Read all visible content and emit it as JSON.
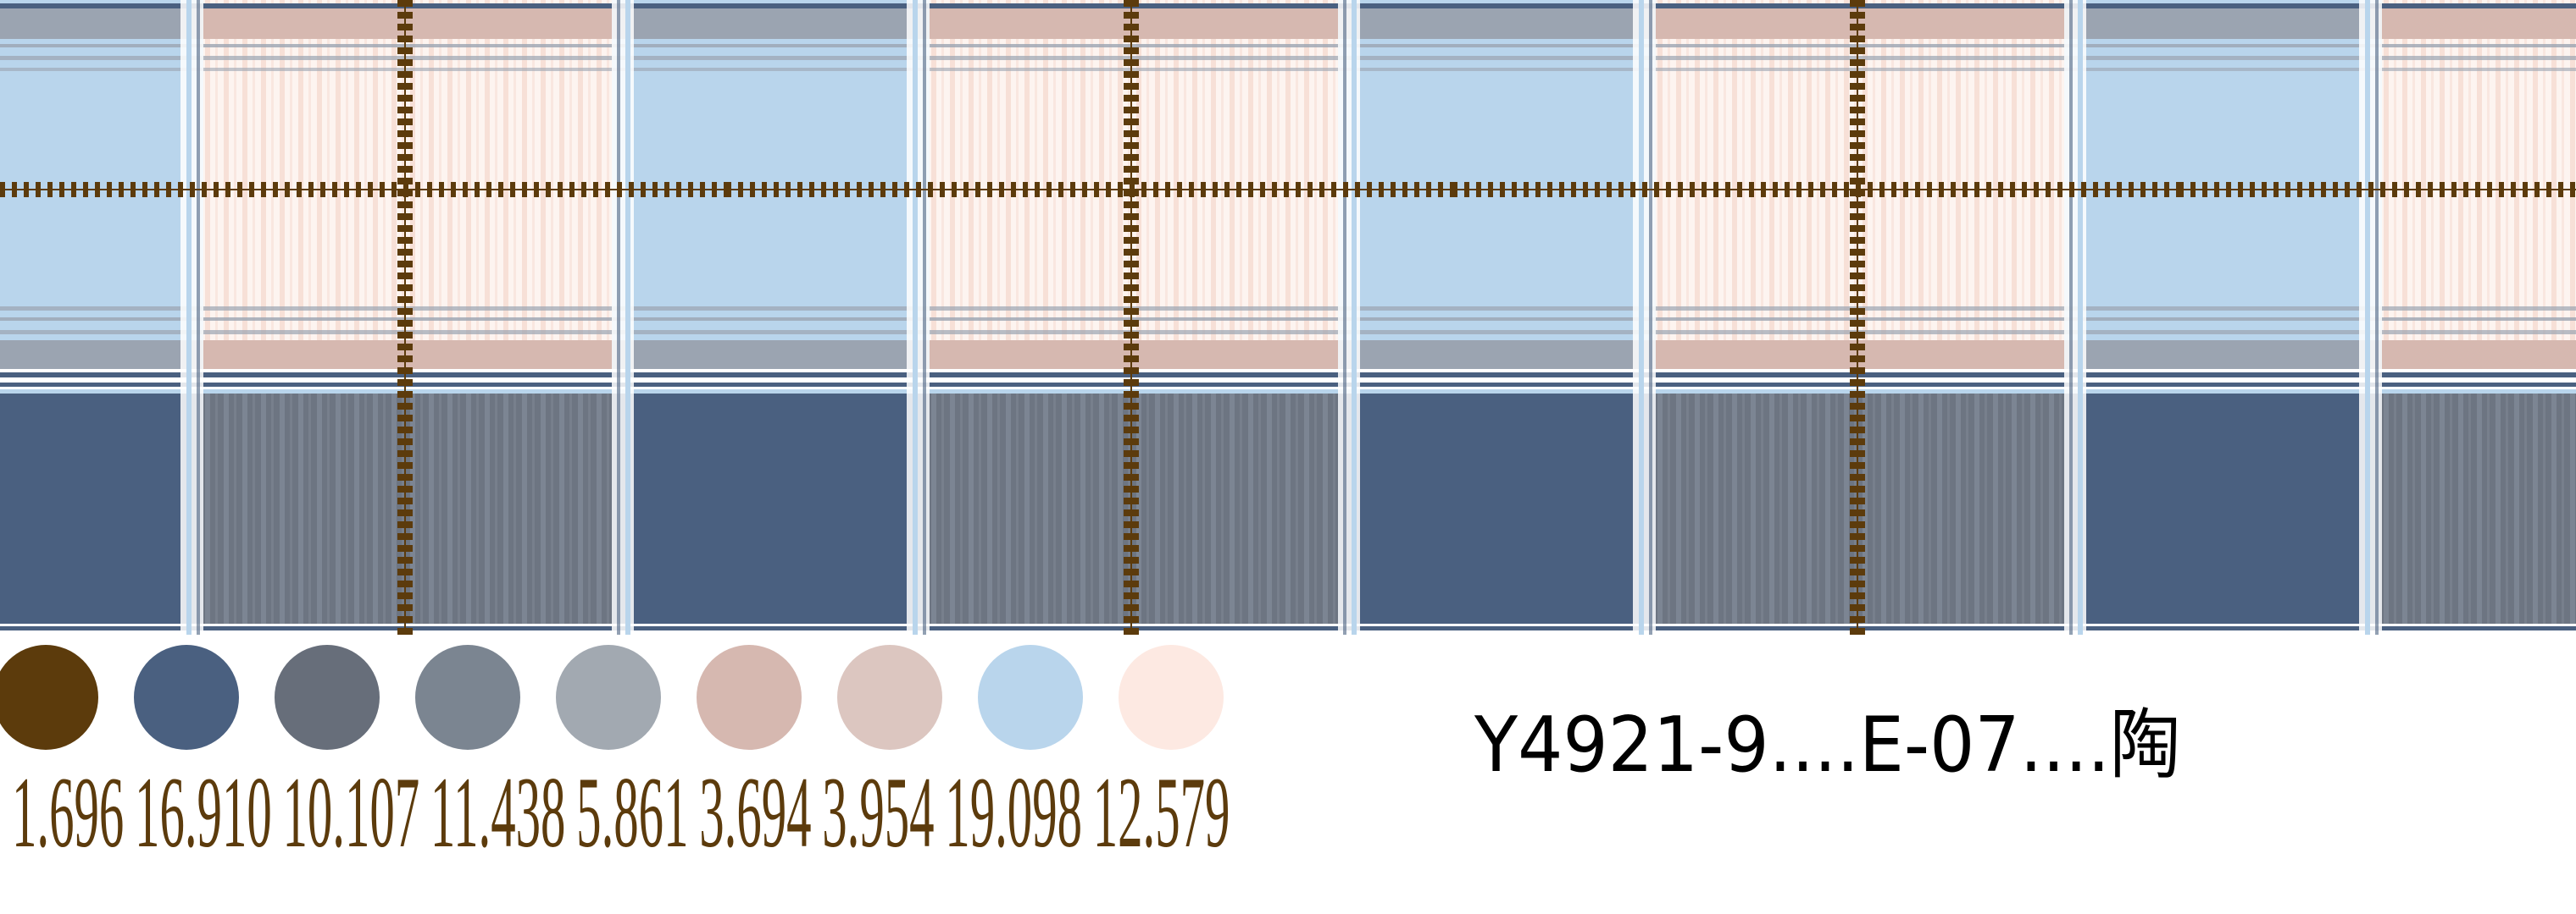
{
  "pattern": {
    "name": "plaid fabric",
    "colors": {
      "light_blue": "#b9d5ec",
      "dark_blue": "#4a6080",
      "grey_band": "#9ba4b1",
      "dusty_pink": "#d6b8b0",
      "cream_pink": "#fcefe9",
      "slate": "#6d7582",
      "vine_brown": "#5c3b0c"
    }
  },
  "swatches": [
    {
      "color": "#5c3b0c",
      "value": "1.696"
    },
    {
      "color": "#4a6080",
      "value": "16.910"
    },
    {
      "color": "#676e7a",
      "value": "10.107"
    },
    {
      "color": "#7b8591",
      "value": "11.438"
    },
    {
      "color": "#a2a9b1",
      "value": "5.861"
    },
    {
      "color": "#d6b8b0",
      "value": "3.694"
    },
    {
      "color": "#dcc6c0",
      "value": "3.954"
    },
    {
      "color": "#b9d5ec",
      "value": "19.098"
    },
    {
      "color": "#fde9e2",
      "value": "12.579"
    }
  ],
  "label_color": "#5c3b0c",
  "code_label": "Y4921-9....E-07....陶"
}
